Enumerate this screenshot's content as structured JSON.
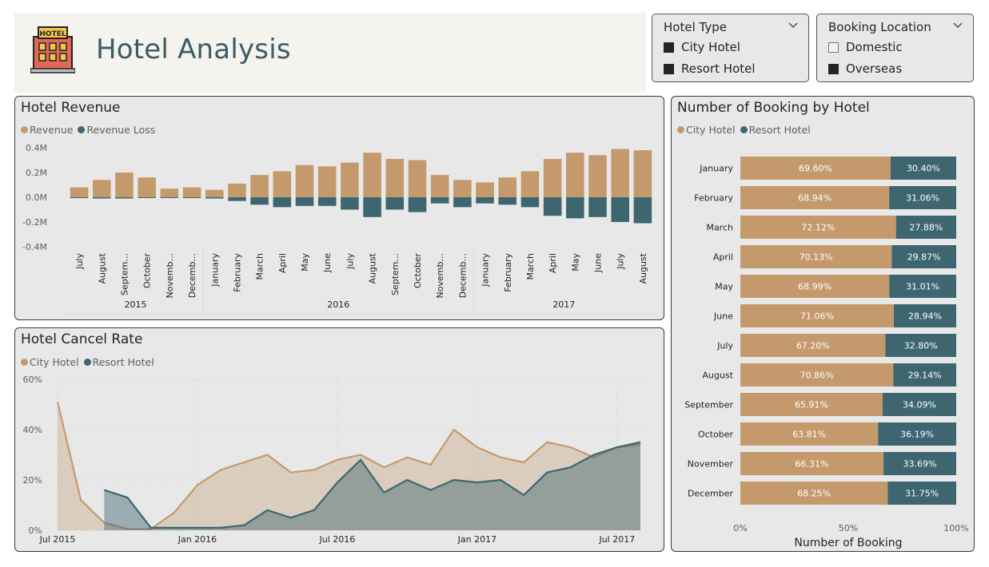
{
  "header": {
    "title": "Hotel Analysis",
    "logo_label": "HOTEL"
  },
  "slicers": {
    "hotel_type": {
      "title": "Hotel Type",
      "options": [
        {
          "label": "City Hotel",
          "checked": true
        },
        {
          "label": "Resort Hotel",
          "checked": true
        }
      ]
    },
    "booking_location": {
      "title": "Booking Location",
      "options": [
        {
          "label": "Domestic",
          "checked": false
        },
        {
          "label": "Overseas",
          "checked": true
        }
      ]
    }
  },
  "colors": {
    "tan": "#c49a6c",
    "teal": "#3e6671",
    "header_title": "#3b5c68"
  },
  "chart_data": [
    {
      "id": "revenue",
      "type": "bar",
      "title": "Hotel Revenue",
      "legend": [
        "Revenue",
        "Revenue Loss"
      ],
      "y_ticks": [
        "0.4M",
        "0.2M",
        "0.0M",
        "-0.2M",
        "-0.4M"
      ],
      "ylim": [
        -0.4,
        0.4
      ],
      "categories": [
        "July",
        "August",
        "Septem...",
        "October",
        "Novemb...",
        "Decemb...",
        "January",
        "February",
        "March",
        "April",
        "May",
        "June",
        "July",
        "August",
        "Septem...",
        "October",
        "Novemb...",
        "Decemb...",
        "January",
        "February",
        "March",
        "April",
        "May",
        "June",
        "July",
        "August"
      ],
      "years": [
        {
          "label": "2015",
          "start": 0,
          "end": 5
        },
        {
          "label": "2016",
          "start": 6,
          "end": 17
        },
        {
          "label": "2017",
          "start": 18,
          "end": 25
        }
      ],
      "series": [
        {
          "name": "Revenue",
          "values": [
            0.08,
            0.14,
            0.2,
            0.16,
            0.07,
            0.08,
            0.06,
            0.11,
            0.18,
            0.21,
            0.26,
            0.25,
            0.28,
            0.36,
            0.31,
            0.3,
            0.18,
            0.14,
            0.12,
            0.16,
            0.21,
            0.31,
            0.36,
            0.34,
            0.39,
            0.38
          ]
        },
        {
          "name": "Revenue Loss",
          "values": [
            -0.005,
            -0.01,
            -0.01,
            -0.005,
            -0.005,
            -0.005,
            -0.01,
            -0.03,
            -0.06,
            -0.08,
            -0.07,
            -0.07,
            -0.1,
            -0.16,
            -0.1,
            -0.12,
            -0.05,
            -0.08,
            -0.05,
            -0.06,
            -0.08,
            -0.15,
            -0.17,
            -0.16,
            -0.2,
            -0.21
          ]
        }
      ]
    },
    {
      "id": "cancel_rate",
      "type": "area",
      "title": "Hotel Cancel Rate",
      "legend": [
        "City Hotel",
        "Resort Hotel"
      ],
      "y_ticks": [
        "60%",
        "40%",
        "20%",
        "0%"
      ],
      "ylim": [
        0,
        60
      ],
      "x_ticks": [
        {
          "label": "Jul 2015",
          "idx": 0
        },
        {
          "label": "Jan 2016",
          "idx": 6
        },
        {
          "label": "Jul 2016",
          "idx": 12
        },
        {
          "label": "Jan 2017",
          "idx": 18
        },
        {
          "label": "Jul 2017",
          "idx": 24
        }
      ],
      "x_count": 26,
      "series": [
        {
          "name": "City Hotel",
          "start": 0,
          "values": [
            51,
            12,
            3,
            0.5,
            0.5,
            7,
            18,
            24,
            27,
            30,
            23,
            24,
            28,
            30,
            25,
            29,
            26,
            40,
            33,
            29,
            27,
            35,
            33,
            29,
            33,
            34
          ]
        },
        {
          "name": "Resort Hotel",
          "start": 2,
          "values": [
            16,
            13,
            1,
            1,
            1,
            1,
            2,
            8,
            5,
            8,
            19,
            28,
            15,
            20,
            16,
            20,
            19,
            20,
            14,
            23,
            25,
            30,
            33,
            35
          ]
        }
      ]
    },
    {
      "id": "bookings",
      "type": "bar",
      "orientation": "horizontal-stacked-100",
      "title": "Number of Booking by Hotel",
      "legend": [
        "City Hotel",
        "Resort Hotel"
      ],
      "xlabel": "Number of Booking",
      "x_ticks": [
        "0%",
        "50%",
        "100%"
      ],
      "categories": [
        "January",
        "February",
        "March",
        "April",
        "May",
        "June",
        "July",
        "August",
        "September",
        "October",
        "November",
        "December"
      ],
      "series": [
        {
          "name": "City Hotel",
          "values": [
            69.6,
            68.94,
            72.12,
            70.13,
            68.99,
            71.06,
            67.2,
            70.86,
            65.91,
            63.81,
            66.31,
            68.25
          ],
          "labels": [
            "69.60%",
            "68.94%",
            "72.12%",
            "70.13%",
            "68.99%",
            "71.06%",
            "67.20%",
            "70.86%",
            "65.91%",
            "63.81%",
            "66.31%",
            "68.25%"
          ]
        },
        {
          "name": "Resort Hotel",
          "values": [
            30.4,
            31.06,
            27.88,
            29.87,
            31.01,
            28.94,
            32.8,
            29.14,
            34.09,
            36.19,
            33.69,
            31.75
          ],
          "labels": [
            "30.40%",
            "31.06%",
            "27.88%",
            "29.87%",
            "31.01%",
            "28.94%",
            "32.80%",
            "29.14%",
            "34.09%",
            "36.19%",
            "33.69%",
            "31.75%"
          ]
        }
      ]
    }
  ]
}
